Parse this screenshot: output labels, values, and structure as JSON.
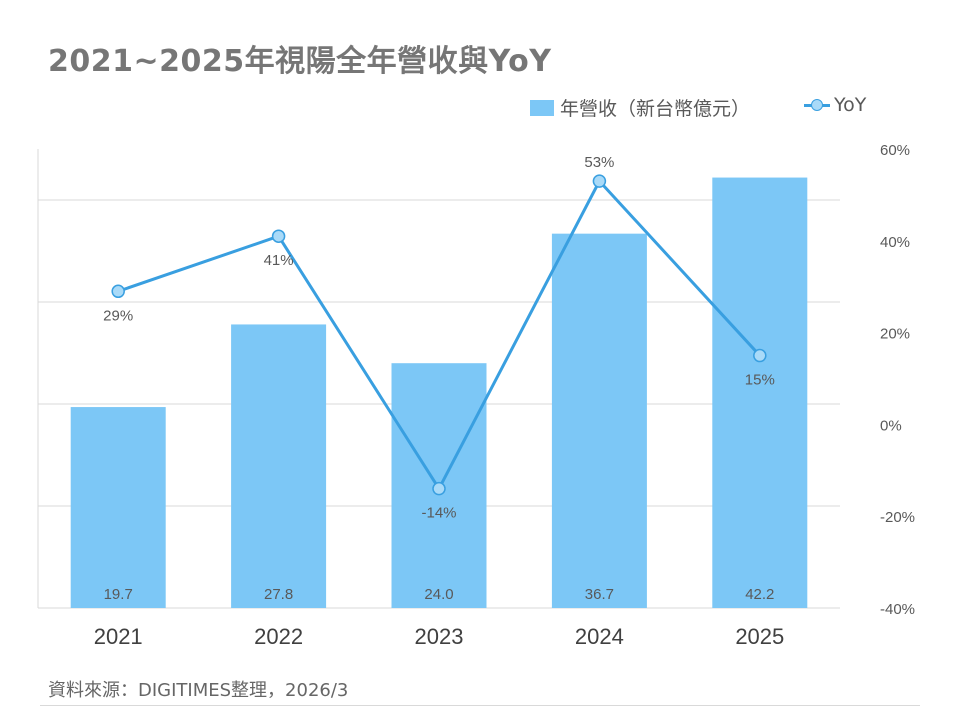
{
  "title": "2021~2025年視陽全年營收與YoY",
  "legend": {
    "bar_label": "年營收（新台幣億元）",
    "line_label": "YoY"
  },
  "source": "資料來源：DIGITIMES整理，2026/3",
  "colors": {
    "bar": "#7cc7f6",
    "line": "#399fe0",
    "marker_fill": "#a9daf8"
  },
  "chart_data": {
    "type": "bar",
    "title": "2021~2025年視陽全年營收與YoY",
    "categories": [
      "2021",
      "2022",
      "2023",
      "2024",
      "2025"
    ],
    "series": [
      {
        "name": "年營收（新台幣億元）",
        "type": "bar",
        "values": [
          19.7,
          27.8,
          24.0,
          36.7,
          42.2
        ],
        "labels": [
          "19.7",
          "27.8",
          "24.0",
          "36.7",
          "42.2"
        ],
        "axis": "left"
      },
      {
        "name": "YoY",
        "type": "line",
        "values": [
          29,
          41,
          -14,
          53,
          15
        ],
        "labels": [
          "29%",
          "41%",
          "-14%",
          "53%",
          "15%"
        ],
        "axis": "right"
      }
    ],
    "y_left": {
      "range": [
        0,
        45
      ],
      "show_tick_labels": false
    },
    "y_right": {
      "range": [
        -40,
        60
      ],
      "ticks": [
        -40,
        -20,
        0,
        20,
        40,
        60
      ],
      "tick_labels": [
        "-40%",
        "-20%",
        "0%",
        "20%",
        "40%",
        "60%"
      ]
    },
    "grid": true,
    "legend_position": "top-right"
  }
}
